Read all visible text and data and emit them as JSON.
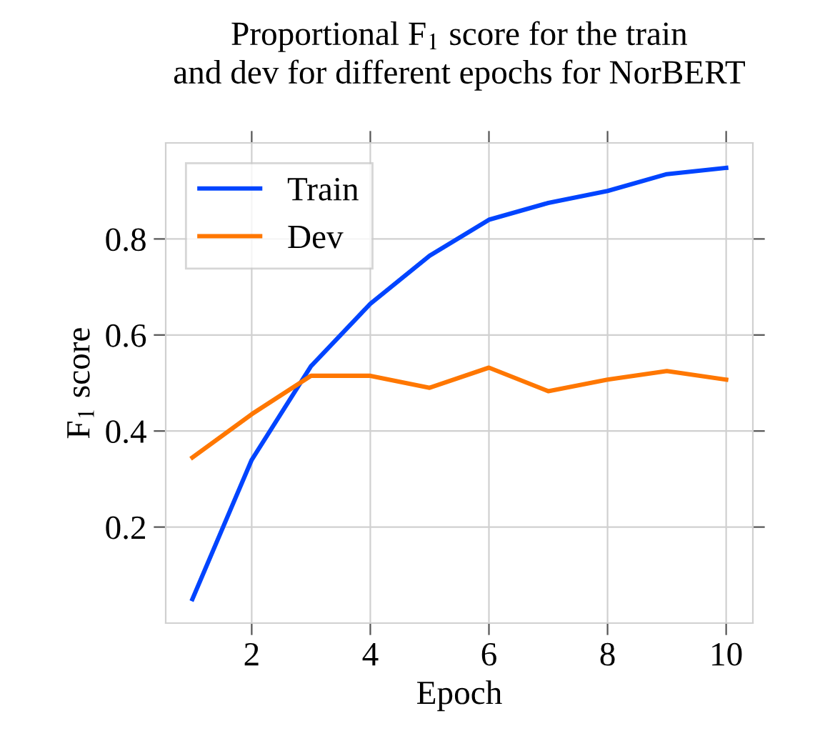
{
  "chart_data": {
    "type": "line",
    "title": "Proportional F$_{1}$ score for the train\nand dev for different epochs for NorBERT",
    "xlabel": "Epoch",
    "ylabel": "F$_{1}$ score",
    "x": [
      1,
      2,
      3,
      4,
      5,
      6,
      7,
      8,
      9,
      10
    ],
    "series": [
      {
        "name": "Train",
        "color": "#0044ff",
        "values": [
          0.05,
          0.34,
          0.535,
          0.665,
          0.765,
          0.84,
          0.875,
          0.9,
          0.935,
          0.948
        ]
      },
      {
        "name": "Dev",
        "color": "#ff7700",
        "values": [
          0.345,
          0.435,
          0.515,
          0.515,
          0.49,
          0.532,
          0.483,
          0.507,
          0.525,
          0.507
        ]
      }
    ],
    "xlim": [
      0.55,
      10.45
    ],
    "ylim": [
      0,
      1.0
    ],
    "xticks": [
      2,
      4,
      6,
      8,
      10
    ],
    "yticks": [
      0.2,
      0.4,
      0.6,
      0.8
    ],
    "grid": true,
    "legend": "top left",
    "marker": "none",
    "line_style": "solid"
  }
}
